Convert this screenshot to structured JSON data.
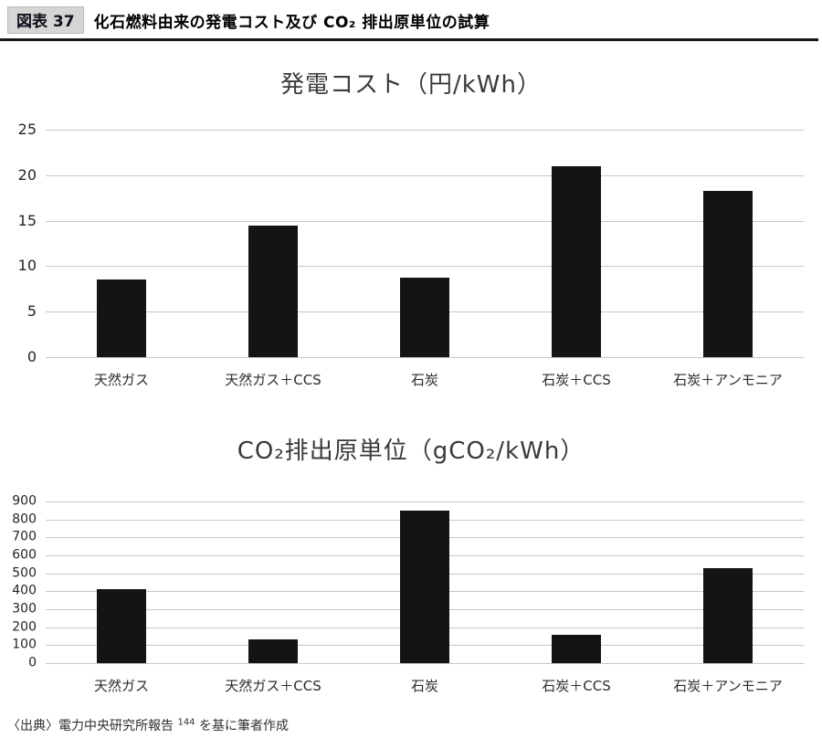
{
  "header": {
    "figure_label": "図表 37",
    "title": "化石燃料由来の発電コスト及び CO₂ 排出原単位の試算"
  },
  "chart_data": [
    {
      "type": "bar",
      "title": "発電コスト（円/kWh）",
      "categories": [
        "天然ガス",
        "天然ガス＋CCS",
        "石炭",
        "石炭＋CCS",
        "石炭＋アンモニア"
      ],
      "values": [
        8.5,
        14.5,
        8.7,
        21,
        18.3
      ],
      "xlabel": "",
      "ylabel": "",
      "ylim": [
        0,
        25
      ],
      "ytick_step": 5,
      "grid": true,
      "legend": "none",
      "bar_color": "#141414",
      "gridline_color": "#c6c6c6"
    },
    {
      "type": "bar",
      "title": "CO₂排出原単位（gCO₂/kWh）",
      "categories": [
        "天然ガス",
        "天然ガス＋CCS",
        "石炭",
        "石炭＋CCS",
        "石炭＋アンモニア"
      ],
      "values": [
        410,
        130,
        850,
        160,
        530
      ],
      "xlabel": "",
      "ylabel": "",
      "ylim": [
        0,
        900
      ],
      "ytick_step": 100,
      "grid": true,
      "legend": "none",
      "bar_color": "#141414",
      "gridline_color": "#c6c6c6"
    }
  ],
  "source": {
    "prefix": "〈出典〉電力中央研究所報告 ",
    "superscript": "144",
    "suffix": " を基に筆者作成"
  }
}
